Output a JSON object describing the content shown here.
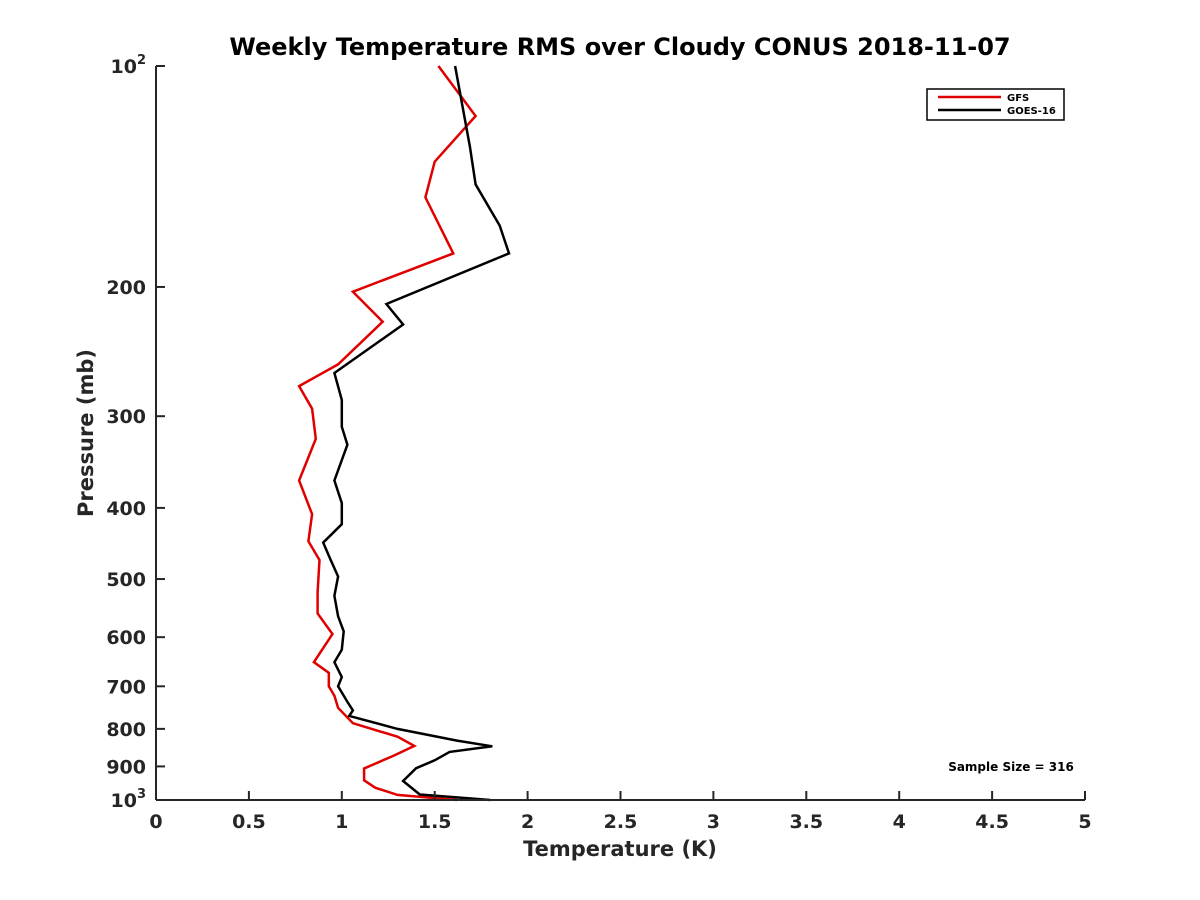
{
  "chart_data": {
    "type": "line",
    "title": "Weekly Temperature RMS over Cloudy CONUS 2018-11-07",
    "xlabel": "Temperature (K)",
    "ylabel": "Pressure (mb)",
    "xlim": [
      0,
      5
    ],
    "ylim": [
      1000,
      100
    ],
    "y_scale": "log",
    "y_reversed": true,
    "x_ticks": [
      "0",
      "0.5",
      "1",
      "1.5",
      "2",
      "2.5",
      "3",
      "3.5",
      "4",
      "4.5",
      "5"
    ],
    "x_tick_values": [
      0,
      0.5,
      1,
      1.5,
      2,
      2.5,
      3,
      3.5,
      4,
      4.5,
      5
    ],
    "y_ticks": [
      {
        "value": 100,
        "base": "10",
        "exp": "2"
      },
      {
        "value": 200,
        "text": "200"
      },
      {
        "value": 300,
        "text": "300"
      },
      {
        "value": 400,
        "text": "400"
      },
      {
        "value": 500,
        "text": "500"
      },
      {
        "value": 600,
        "text": "600"
      },
      {
        "value": 700,
        "text": "700"
      },
      {
        "value": 800,
        "text": "800"
      },
      {
        "value": 900,
        "text": "900"
      },
      {
        "value": 1000,
        "base": "10",
        "exp": "3"
      }
    ],
    "grid": false,
    "legend_position": "top-right",
    "series": [
      {
        "name": "GFS",
        "color": "#e00000",
        "points": [
          [
            1.52,
            100
          ],
          [
            1.72,
            117
          ],
          [
            1.5,
            135
          ],
          [
            1.45,
            151
          ],
          [
            1.6,
            180
          ],
          [
            1.06,
            203
          ],
          [
            1.22,
            223
          ],
          [
            0.98,
            255
          ],
          [
            0.77,
            273
          ],
          [
            0.84,
            293
          ],
          [
            0.86,
            322
          ],
          [
            0.77,
            367
          ],
          [
            0.84,
            408
          ],
          [
            0.82,
            444
          ],
          [
            0.88,
            471
          ],
          [
            0.87,
            521
          ],
          [
            0.87,
            557
          ],
          [
            0.95,
            594
          ],
          [
            0.85,
            649
          ],
          [
            0.93,
            671
          ],
          [
            0.93,
            700
          ],
          [
            0.96,
            721
          ],
          [
            0.98,
            749
          ],
          [
            1.06,
            786
          ],
          [
            1.3,
            820
          ],
          [
            1.39,
            844
          ],
          [
            1.28,
            870
          ],
          [
            1.12,
            906
          ],
          [
            1.12,
            940
          ],
          [
            1.18,
            962
          ],
          [
            1.3,
            984
          ],
          [
            1.62,
            1000
          ]
        ]
      },
      {
        "name": "GOES-16",
        "color": "#000000",
        "points": [
          [
            1.61,
            100
          ],
          [
            1.69,
            129
          ],
          [
            1.72,
            145
          ],
          [
            1.85,
            165
          ],
          [
            1.9,
            180
          ],
          [
            1.24,
            211
          ],
          [
            1.33,
            225
          ],
          [
            0.96,
            262
          ],
          [
            1.0,
            285
          ],
          [
            1.0,
            310
          ],
          [
            1.03,
            328
          ],
          [
            0.96,
            367
          ],
          [
            1.0,
            394
          ],
          [
            1.0,
            421
          ],
          [
            0.9,
            446
          ],
          [
            0.94,
            471
          ],
          [
            0.98,
            496
          ],
          [
            0.96,
            527
          ],
          [
            0.98,
            562
          ],
          [
            1.01,
            589
          ],
          [
            1.0,
            624
          ],
          [
            0.96,
            649
          ],
          [
            1.0,
            680
          ],
          [
            0.98,
            700
          ],
          [
            1.03,
            735
          ],
          [
            1.06,
            755
          ],
          [
            1.04,
            768
          ],
          [
            1.3,
            800
          ],
          [
            1.62,
            830
          ],
          [
            1.81,
            845
          ],
          [
            1.58,
            860
          ],
          [
            1.5,
            883
          ],
          [
            1.4,
            905
          ],
          [
            1.33,
            942
          ],
          [
            1.42,
            983
          ],
          [
            1.8,
            1000
          ]
        ]
      }
    ],
    "legend": [
      "GFS",
      "GOES-16"
    ],
    "annotations": [
      "Sample Size = 316"
    ]
  }
}
